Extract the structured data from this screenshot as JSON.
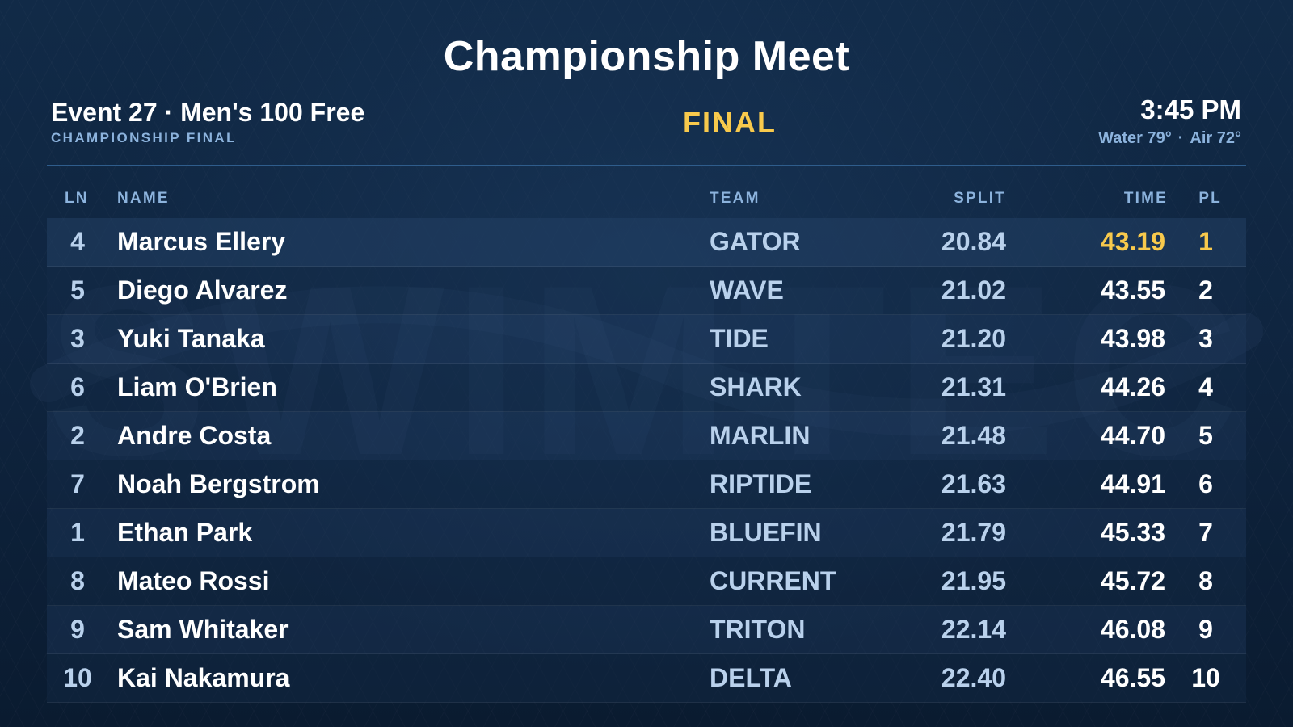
{
  "meet": {
    "title": "Championship Meet"
  },
  "event": {
    "name": "Event 27 · Men's 100 Free",
    "subtitle": "CHAMPIONSHIP FINAL",
    "status": "FINAL"
  },
  "info": {
    "clock": "3:45 PM",
    "water": "Water 79°",
    "separator": "·",
    "air": "Air 72°"
  },
  "headers": {
    "lane": "LN",
    "name": "NAME",
    "team": "TEAM",
    "split": "SPLIT",
    "time": "TIME",
    "place": "PL"
  },
  "watermark": {
    "text": "SWIMTEC"
  },
  "colors": {
    "accent_gold": "#f8c94c",
    "label_blue": "#8cb3dd",
    "divider_blue": "#2f5d8c",
    "background": "#0f2540"
  },
  "results": [
    {
      "lane": "4",
      "name": "Marcus Ellery",
      "team": "GATOR",
      "split": "20.84",
      "time": "43.19",
      "place": "1"
    },
    {
      "lane": "5",
      "name": "Diego Alvarez",
      "team": "WAVE",
      "split": "21.02",
      "time": "43.55",
      "place": "2"
    },
    {
      "lane": "3",
      "name": "Yuki Tanaka",
      "team": "TIDE",
      "split": "21.20",
      "time": "43.98",
      "place": "3"
    },
    {
      "lane": "6",
      "name": "Liam O'Brien",
      "team": "SHARK",
      "split": "21.31",
      "time": "44.26",
      "place": "4"
    },
    {
      "lane": "2",
      "name": "Andre Costa",
      "team": "MARLIN",
      "split": "21.48",
      "time": "44.70",
      "place": "5"
    },
    {
      "lane": "7",
      "name": "Noah Bergstrom",
      "team": "RIPTIDE",
      "split": "21.63",
      "time": "44.91",
      "place": "6"
    },
    {
      "lane": "1",
      "name": "Ethan Park",
      "team": "BLUEFIN",
      "split": "21.79",
      "time": "45.33",
      "place": "7"
    },
    {
      "lane": "8",
      "name": "Mateo Rossi",
      "team": "CURRENT",
      "split": "21.95",
      "time": "45.72",
      "place": "8"
    },
    {
      "lane": "9",
      "name": "Sam Whitaker",
      "team": "TRITON",
      "split": "22.14",
      "time": "46.08",
      "place": "9"
    },
    {
      "lane": "10",
      "name": "Kai Nakamura",
      "team": "DELTA",
      "split": "22.40",
      "time": "46.55",
      "place": "10"
    }
  ]
}
